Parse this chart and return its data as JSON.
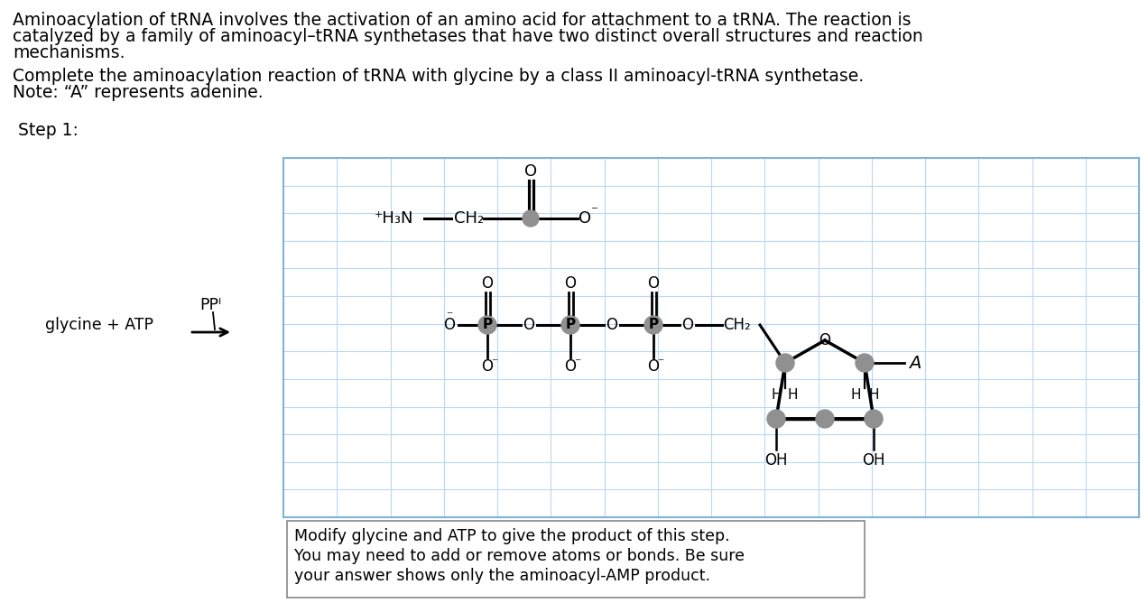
{
  "title_lines": [
    "Aminoacylation of tRNA involves the activation of an amino acid for attachment to a tRNA. The reaction is",
    "catalyzed by a family of aminoacyl–tRNA synthetases that have two distinct overall structures and reaction",
    "mechanisms."
  ],
  "subtitle_lines": [
    "Complete the aminoacylation reaction of tRNA with glycine by a class II aminoacyl-tRNA synthetase.",
    "Note: “A” represents adenine."
  ],
  "step_label": "Step 1:",
  "reactant_label": "glycine + ATP",
  "ppi_label": "PPᴵ",
  "note_lines": [
    "Modify glycine and ATP to give the product of this step.",
    "You may need to add or remove atoms or bonds. Be sure",
    "your answer shows only the aminoacyl-AMP product."
  ],
  "bg_color": "#ffffff",
  "grid_color": "#b8d8f2",
  "box_border_color": "#82b4d8",
  "atom_color": "#909090",
  "text_color": "#000000",
  "body_fs": 13.5,
  "chem_fs": 12.5,
  "note_fs": 12.5
}
